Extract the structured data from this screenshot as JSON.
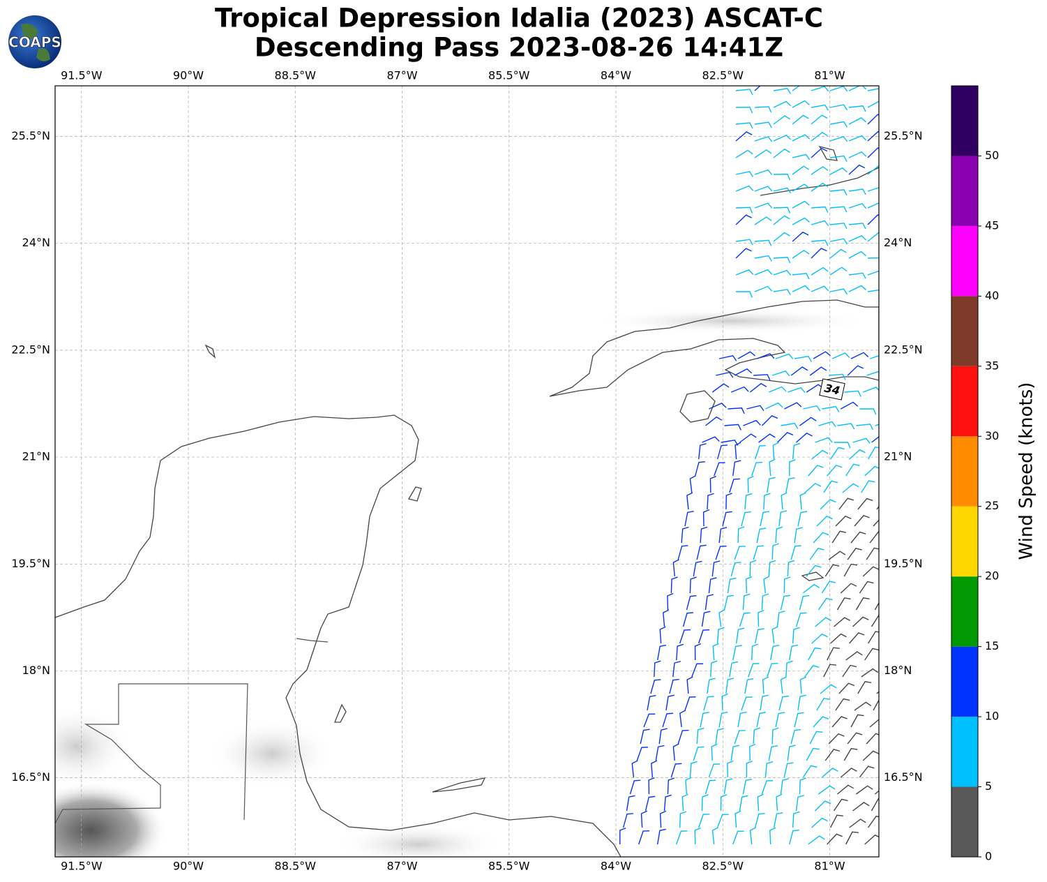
{
  "chart_data": {
    "type": "map",
    "title": "Tropical Depression Idalia (2023) ASCAT-C",
    "subtitle": "Descending Pass 2023-08-26 14:41Z",
    "logo": "COAPS",
    "xlim": [
      -91.87,
      -80.31
    ],
    "ylim": [
      15.39,
      26.21
    ],
    "xticks": [
      {
        "value": -91.5,
        "label": "91.5°W"
      },
      {
        "value": -90,
        "label": "90°W"
      },
      {
        "value": -88.5,
        "label": "88.5°W"
      },
      {
        "value": -87,
        "label": "87°W"
      },
      {
        "value": -85.5,
        "label": "85.5°W"
      },
      {
        "value": -84,
        "label": "84°W"
      },
      {
        "value": -82.5,
        "label": "82.5°W"
      },
      {
        "value": -81,
        "label": "81°W"
      }
    ],
    "yticks": [
      {
        "value": 25.5,
        "label": "25.5°N"
      },
      {
        "value": 24,
        "label": "24°N"
      },
      {
        "value": 22.5,
        "label": "22.5°N"
      },
      {
        "value": 21,
        "label": "21°N"
      },
      {
        "value": 19.5,
        "label": "19.5°N"
      },
      {
        "value": 18,
        "label": "18°N"
      },
      {
        "value": 16.5,
        "label": "16.5°N"
      }
    ],
    "grid": true,
    "annotation": "34",
    "colorbar": {
      "label": "Wind Speed (knots)",
      "lim": [
        0,
        55
      ],
      "bounds": [
        0,
        5,
        10,
        15,
        20,
        25,
        30,
        35,
        40,
        45,
        50,
        55
      ],
      "ticks": [
        0,
        5,
        10,
        15,
        20,
        25,
        30,
        35,
        40,
        45,
        50
      ],
      "colors": [
        "#595959",
        "#00bfff",
        "#0033ff",
        "#009900",
        "#ffd700",
        "#ff8c00",
        "#ff1010",
        "#7f3b29",
        "#ff00ff",
        "#8b00b0",
        "#300060"
      ]
    }
  }
}
